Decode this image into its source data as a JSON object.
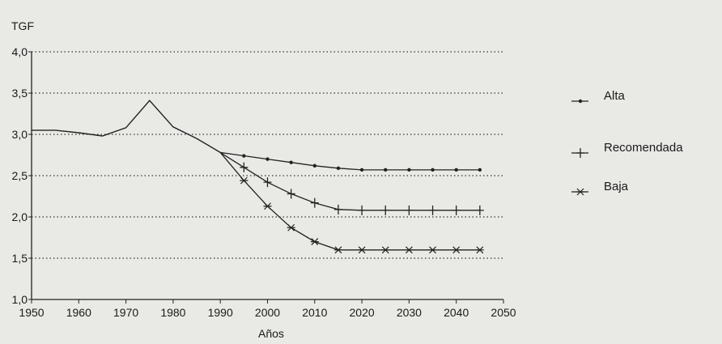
{
  "chart_data": {
    "type": "line",
    "title": "",
    "ylabel": "TGF",
    "xlabel": "Años",
    "xlim": [
      1950,
      2050
    ],
    "ylim": [
      1.0,
      4.0
    ],
    "x_ticks": [
      "1950",
      "1960",
      "1970",
      "1980",
      "1990",
      "2000",
      "2010",
      "2020",
      "2030",
      "2040",
      "2050"
    ],
    "y_ticks": [
      "1,0",
      "1,5",
      "2,0",
      "2,5",
      "3,0",
      "3,5",
      "4,0"
    ],
    "grid": "horizontal dotted",
    "legend_position": "right",
    "history": {
      "x": [
        1950,
        1955,
        1960,
        1965,
        1970,
        1975,
        1980,
        1985,
        1990
      ],
      "y": [
        3.05,
        3.05,
        3.02,
        2.98,
        3.08,
        3.41,
        3.09,
        2.95,
        2.78
      ]
    },
    "series": [
      {
        "name": "Alta",
        "marker": "dot",
        "x": [
          1990,
          1995,
          2000,
          2005,
          2010,
          2015,
          2020,
          2025,
          2030,
          2035,
          2040,
          2045
        ],
        "y": [
          2.78,
          2.74,
          2.7,
          2.66,
          2.62,
          2.59,
          2.57,
          2.57,
          2.57,
          2.57,
          2.57,
          2.57
        ]
      },
      {
        "name": "Recomendada",
        "marker": "plus",
        "x": [
          1990,
          1995,
          2000,
          2005,
          2010,
          2015,
          2020,
          2025,
          2030,
          2035,
          2040,
          2045
        ],
        "y": [
          2.78,
          2.6,
          2.42,
          2.28,
          2.17,
          2.09,
          2.08,
          2.08,
          2.08,
          2.08,
          2.08,
          2.08
        ]
      },
      {
        "name": "Baja",
        "marker": "star",
        "x": [
          1990,
          1995,
          2000,
          2005,
          2010,
          2015,
          2020,
          2025,
          2030,
          2035,
          2040,
          2045
        ],
        "y": [
          2.78,
          2.44,
          2.13,
          1.87,
          1.7,
          1.6,
          1.6,
          1.6,
          1.6,
          1.6,
          1.6,
          1.6
        ]
      }
    ]
  }
}
